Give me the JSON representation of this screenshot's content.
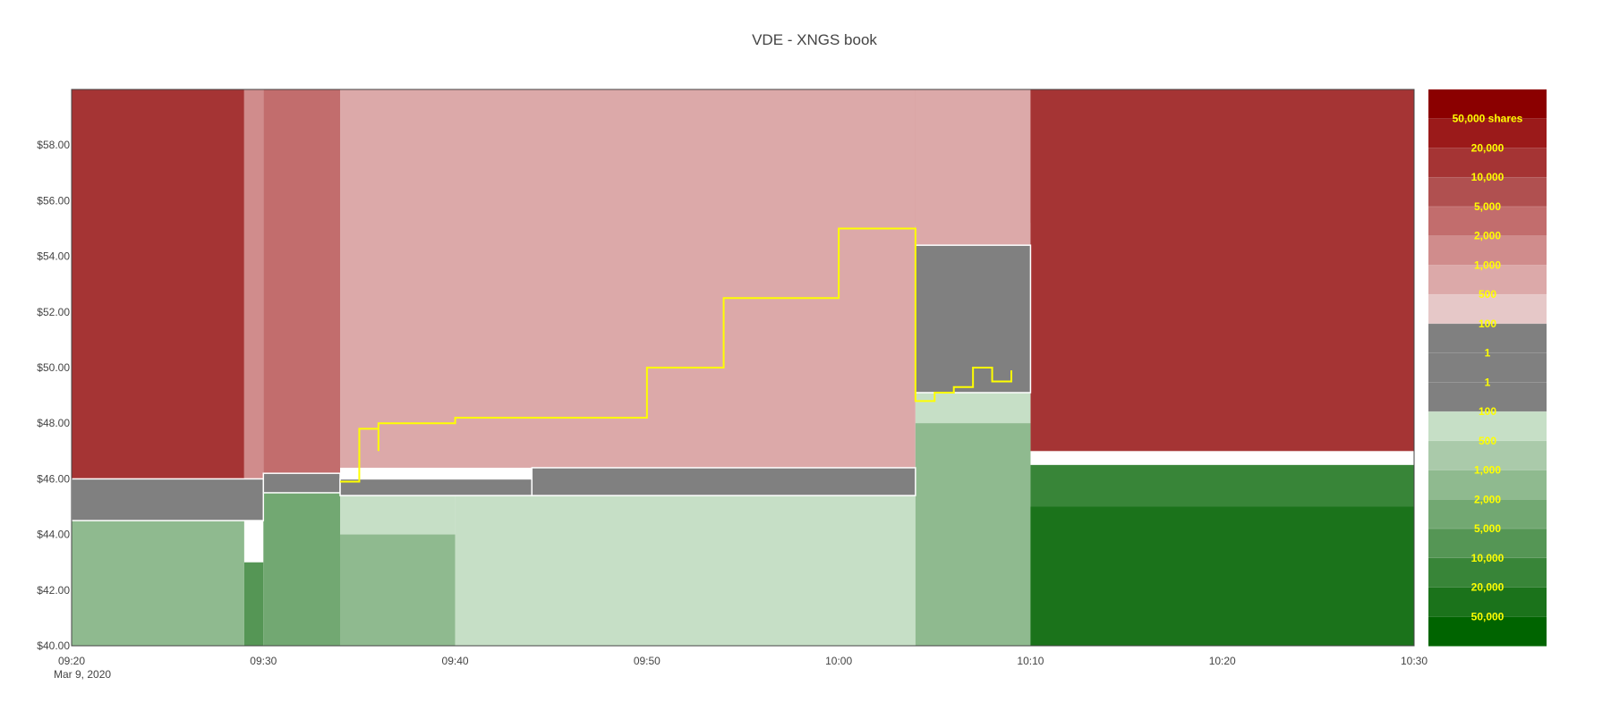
{
  "chart_data": {
    "type": "heatmap",
    "title": "VDE - XNGS book",
    "x_axis": {
      "range": [
        "09:20",
        "10:30"
      ],
      "tick_labels": [
        "09:20",
        "09:30",
        "09:40",
        "09:50",
        "10:00",
        "10:10",
        "10:20",
        "10:30"
      ],
      "date_label": "Mar 9, 2020"
    },
    "y_axis": {
      "range": [
        40,
        60
      ],
      "tick_values": [
        40,
        42,
        44,
        46,
        48,
        50,
        52,
        54,
        56,
        58
      ],
      "tick_labels": [
        "$40.00",
        "$42.00",
        "$44.00",
        "$46.00",
        "$48.00",
        "$50.00",
        "$52.00",
        "$54.00",
        "$56.00",
        "$58.00"
      ]
    },
    "grid": false,
    "legend": {
      "position": "right",
      "entries": [
        {
          "label": "50,000 shares",
          "color": "#8b0000"
        },
        {
          "label": "20,000",
          "color": "#9b1a1a"
        },
        {
          "label": "10,000",
          "color": "#a53434"
        },
        {
          "label": "5,000",
          "color": "#b05050"
        },
        {
          "label": "2,000",
          "color": "#c26d6d"
        },
        {
          "label": "1,000",
          "color": "#d08c8c"
        },
        {
          "label": "500",
          "color": "#dca9a9"
        },
        {
          "label": "100",
          "color": "#e6c8c8"
        },
        {
          "label": "1",
          "color": "#808080"
        },
        {
          "label": "1",
          "color": "#808080"
        },
        {
          "label": "100",
          "color": "#808080"
        },
        {
          "label": "500",
          "color": "#c6dfc6"
        },
        {
          "label": "1,000",
          "color": "#aacaaa"
        },
        {
          "label": "2,000",
          "color": "#8fba8f"
        },
        {
          "label": "5,000",
          "color": "#72a872"
        },
        {
          "label": "10,000",
          "color": "#559655"
        },
        {
          "label": "20,000",
          "color": "#388538"
        },
        {
          "label": "50,000",
          "color": "#1b731b"
        },
        {
          "label": "",
          "color": "#006400"
        }
      ]
    },
    "ask_regions": [
      {
        "start": "09:20",
        "end": "09:29",
        "lo": 46.0,
        "level": 2
      },
      {
        "start": "09:29",
        "end": "09:30",
        "lo": 45.5,
        "level": 5
      },
      {
        "start": "09:30",
        "end": "09:34",
        "lo": 46.2,
        "level": 4
      },
      {
        "start": "09:34",
        "end": "10:04",
        "lo": 55.1,
        "level": 5
      },
      {
        "start": "09:34",
        "end": "10:04",
        "lo": 46.4,
        "level": 6
      },
      {
        "start": "10:04",
        "end": "10:10",
        "lo": 55.2,
        "level": 5
      },
      {
        "start": "10:04",
        "end": "10:10",
        "lo": 54.4,
        "level": 6
      },
      {
        "start": "10:10",
        "end": "10:30",
        "lo": 47.0,
        "level": 2
      }
    ],
    "bid_regions": [
      {
        "start": "09:20",
        "end": "09:29",
        "hi": 45.0,
        "level": 13
      },
      {
        "start": "09:29",
        "end": "09:30",
        "hi": 43.0,
        "level": 15
      },
      {
        "start": "09:30",
        "end": "09:34",
        "hi": 45.5,
        "level": 14
      },
      {
        "start": "09:34",
        "end": "09:40",
        "hi": 45.4,
        "level": 11
      },
      {
        "start": "09:34",
        "end": "09:40",
        "hi": 44.0,
        "level": 13
      },
      {
        "start": "09:40",
        "end": "10:04",
        "hi": 45.4,
        "level": 11
      },
      {
        "start": "10:04",
        "end": "10:10",
        "hi": 49.1,
        "level": 11
      },
      {
        "start": "10:04",
        "end": "10:10",
        "hi": 48.0,
        "level": 13
      },
      {
        "start": "10:10",
        "end": "10:30",
        "hi": 46.5,
        "level": 16
      },
      {
        "start": "10:10",
        "end": "10:30",
        "hi": 45.0,
        "level": 17
      }
    ],
    "spread_regions": [
      {
        "start": "09:20",
        "end": "09:30",
        "lo": 44.5,
        "hi": 46.0
      },
      {
        "start": "09:30",
        "end": "09:34",
        "lo": 45.5,
        "hi": 46.2
      },
      {
        "start": "09:34",
        "end": "09:44",
        "lo": 45.4,
        "hi": 46.0
      },
      {
        "start": "09:44",
        "end": "10:04",
        "lo": 45.4,
        "hi": 46.4
      },
      {
        "start": "10:04",
        "end": "10:10",
        "lo": 49.1,
        "hi": 54.4
      }
    ],
    "series": [
      {
        "color": "#ffff00",
        "x": [
          "09:34",
          "09:35",
          "09:35",
          "09:36",
          "09:36",
          "09:40",
          "09:50",
          "09:54",
          "10:00",
          "10:04",
          "10:04",
          "10:05",
          "10:06",
          "10:07",
          "10:08",
          "10:08",
          "10:09"
        ],
        "y": [
          45.9,
          46.0,
          47.8,
          47.0,
          48.0,
          48.2,
          50.0,
          52.5,
          55.0,
          54.0,
          48.8,
          49.1,
          49.3,
          50.0,
          50.0,
          49.5,
          49.9
        ]
      }
    ]
  }
}
